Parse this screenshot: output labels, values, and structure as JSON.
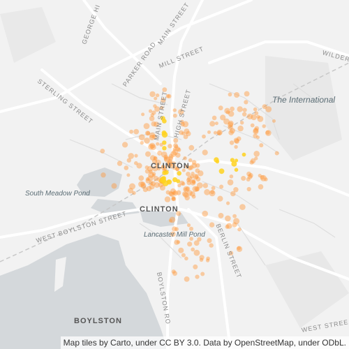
{
  "map": {
    "attribution": "Map tiles by Carto, under CC BY 3.0. Data by OpenStreetMap, under ODbL.",
    "colors": {
      "land": "#f2f2f2",
      "water": "#d4d8db",
      "road": "#ffffff",
      "minor_road": "#e3e3e3",
      "greenspace": "#e8e8e8",
      "point": "#ff9a3c",
      "point_dense": "#ffd21e"
    },
    "places": {
      "clinton_north": "CLINTON",
      "clinton_south": "CLINTON",
      "boylston": "BOYLSTON",
      "international": "The International",
      "south_meadow_pond": "South Meadow Pond",
      "lancaster_mill_pond": "Lancaster Mill Pond"
    },
    "streets": {
      "george_hill": "GEORGE HI",
      "main_street_top": "MAIN STREET",
      "mill_street": "MILL STREET",
      "parker_road": "PARKER ROAD",
      "sterling_street": "STERLING STREET",
      "high_street": "HIGH STREET",
      "main_street_mid": "MAIN STREET",
      "wilder": "WILDER",
      "west_boylston_street": "WEST BOYLSTON STREET",
      "berlin_street": "BERLIN STREET",
      "boylston_road": "BOYLSTON RO",
      "west_street": "WEST STREE"
    }
  }
}
